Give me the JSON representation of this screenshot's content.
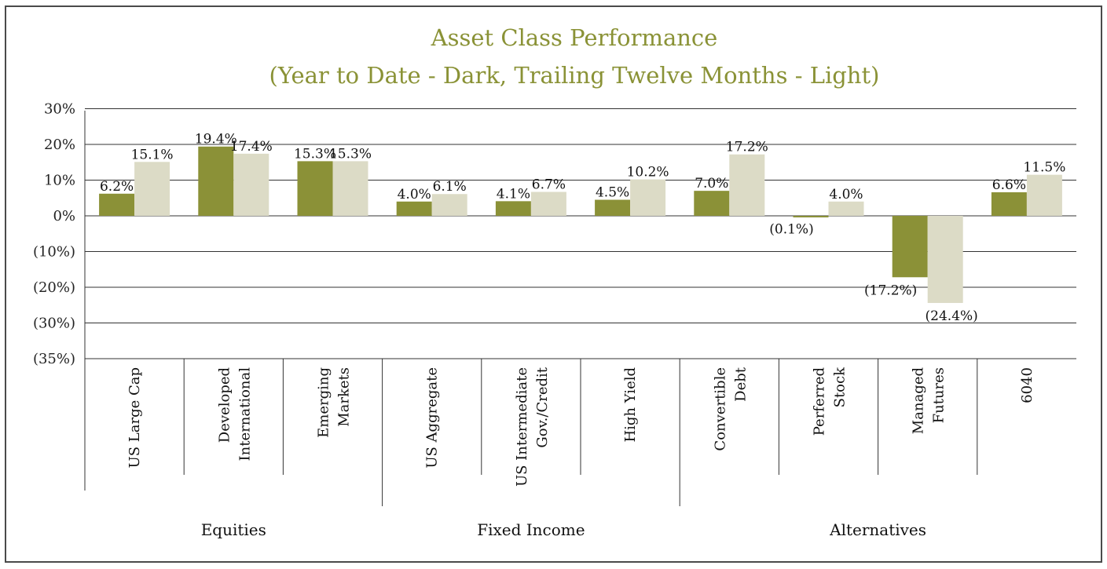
{
  "chart_data": {
    "type": "bar",
    "title": "Asset Class Performance",
    "subtitle": "(Year to Date - Dark, Trailing Twelve Months - Light)",
    "y_ticks": [
      "30%",
      "20%",
      "10%",
      "0%",
      "(10%)",
      "(20%)",
      "(30%)",
      "(35%)"
    ],
    "ylim": [
      -35,
      30
    ],
    "grid": true,
    "categories": [
      "US Large Cap",
      "Developed International",
      "Emerging Markets",
      "US Aggregate",
      "US Intermediate Gov./Credit",
      "High Yield",
      "Convertible Debt",
      "Perferred Stock",
      "Managed Futures",
      "6040"
    ],
    "series": [
      {
        "values": [
          6.2,
          19.4,
          15.3,
          4.0,
          4.1,
          4.5,
          7.0,
          -0.1,
          -17.2,
          6.6
        ],
        "labels": [
          "6.2%",
          "19.4%",
          "15.3%",
          "4.0%",
          "4.1%",
          "4.5%",
          "7.0%",
          "(0.1%)",
          "(17.2%)",
          "6.6%"
        ],
        "color": "#8b9137"
      },
      {
        "values": [
          15.1,
          17.4,
          15.3,
          6.1,
          6.7,
          10.2,
          17.2,
          4.0,
          -24.4,
          11.5
        ],
        "labels": [
          "15.1%",
          "17.4%",
          "15.3%",
          "6.1%",
          "6.7%",
          "10.2%",
          "17.2%",
          "4.0%",
          "(24.4%)",
          "11.5%"
        ],
        "color": "#dcdbc6"
      }
    ],
    "groups": [
      {
        "label": "Equities",
        "count": 3
      },
      {
        "label": "Fixed Income",
        "count": 3
      },
      {
        "label": "Alternatives",
        "count": 4
      }
    ]
  }
}
